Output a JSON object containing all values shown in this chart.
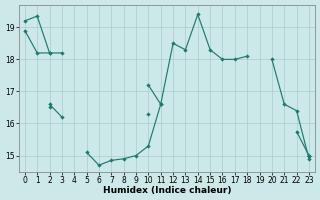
{
  "xlabel": "Humidex (Indice chaleur)",
  "xlim": [
    -0.5,
    23.5
  ],
  "ylim": [
    14.5,
    19.7
  ],
  "yticks": [
    15,
    16,
    17,
    18,
    19
  ],
  "xticks": [
    0,
    1,
    2,
    3,
    4,
    5,
    6,
    7,
    8,
    9,
    10,
    11,
    12,
    13,
    14,
    15,
    16,
    17,
    18,
    19,
    20,
    21,
    22,
    23
  ],
  "bg_color": "#cce8e8",
  "line_color": "#1f7a6e",
  "grid_color": "#aacccc",
  "line1_y": [
    19.2,
    19.35,
    18.2,
    18.2,
    null,
    null,
    null,
    null,
    null,
    null,
    17.2,
    16.6,
    18.5,
    18.3,
    19.4,
    18.3,
    18.0,
    18.0,
    18.1,
    null,
    18.0,
    16.6,
    16.4,
    14.9
  ],
  "line2_y": [
    18.9,
    18.2,
    18.2,
    null,
    null,
    null,
    null,
    null,
    null,
    null,
    null,
    null,
    null,
    null,
    null,
    null,
    null,
    null,
    null,
    null,
    null,
    null,
    null,
    15.0
  ],
  "line3_y": [
    null,
    null,
    16.6,
    16.2,
    null,
    15.1,
    14.7,
    14.85,
    14.9,
    15.0,
    15.3,
    16.6,
    null,
    null,
    null,
    null,
    null,
    null,
    null,
    null,
    null,
    null,
    15.75,
    15.0
  ],
  "line4_y": [
    null,
    null,
    16.5,
    null,
    null,
    null,
    null,
    null,
    null,
    null,
    16.3,
    null,
    null,
    null,
    null,
    null,
    null,
    null,
    null,
    null,
    null,
    null,
    null,
    15.0
  ]
}
